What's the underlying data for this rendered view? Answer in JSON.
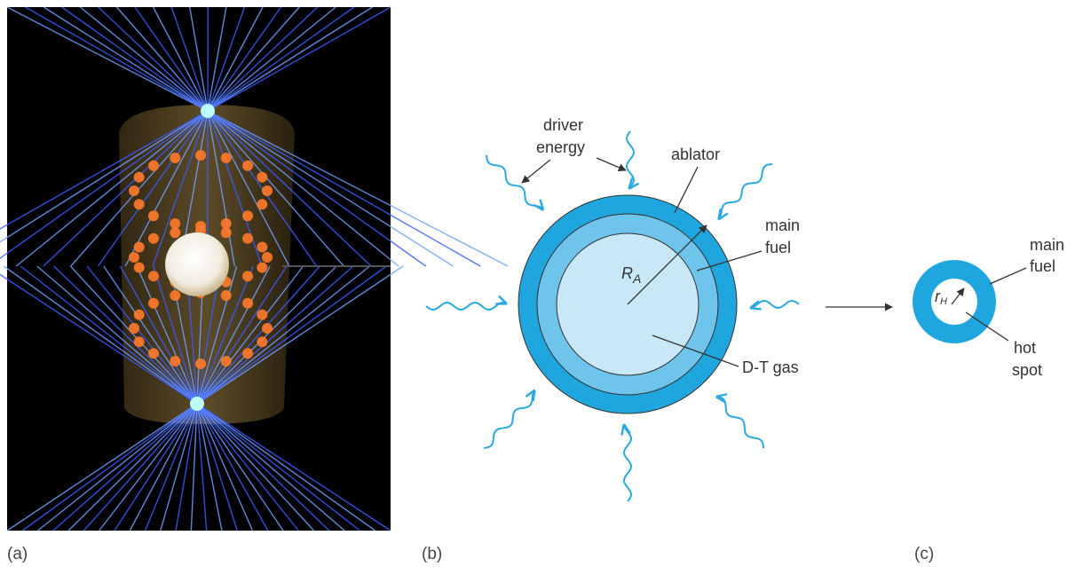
{
  "panel_a": {
    "label": "(a)"
  },
  "panel_b": {
    "label": "(b)",
    "driver_energy": [
      "driver",
      "energy"
    ],
    "ablator": "ablator",
    "main_fuel": [
      "main",
      "fuel"
    ],
    "radius": {
      "symbol": "R",
      "subscript": "A"
    },
    "dt_gas": "D-T gas"
  },
  "panel_c": {
    "label": "(c)",
    "main_fuel": [
      "main",
      "fuel"
    ],
    "hot_spot": [
      "hot",
      "spot"
    ],
    "radius": {
      "symbol": "r",
      "subscript": "H"
    }
  }
}
